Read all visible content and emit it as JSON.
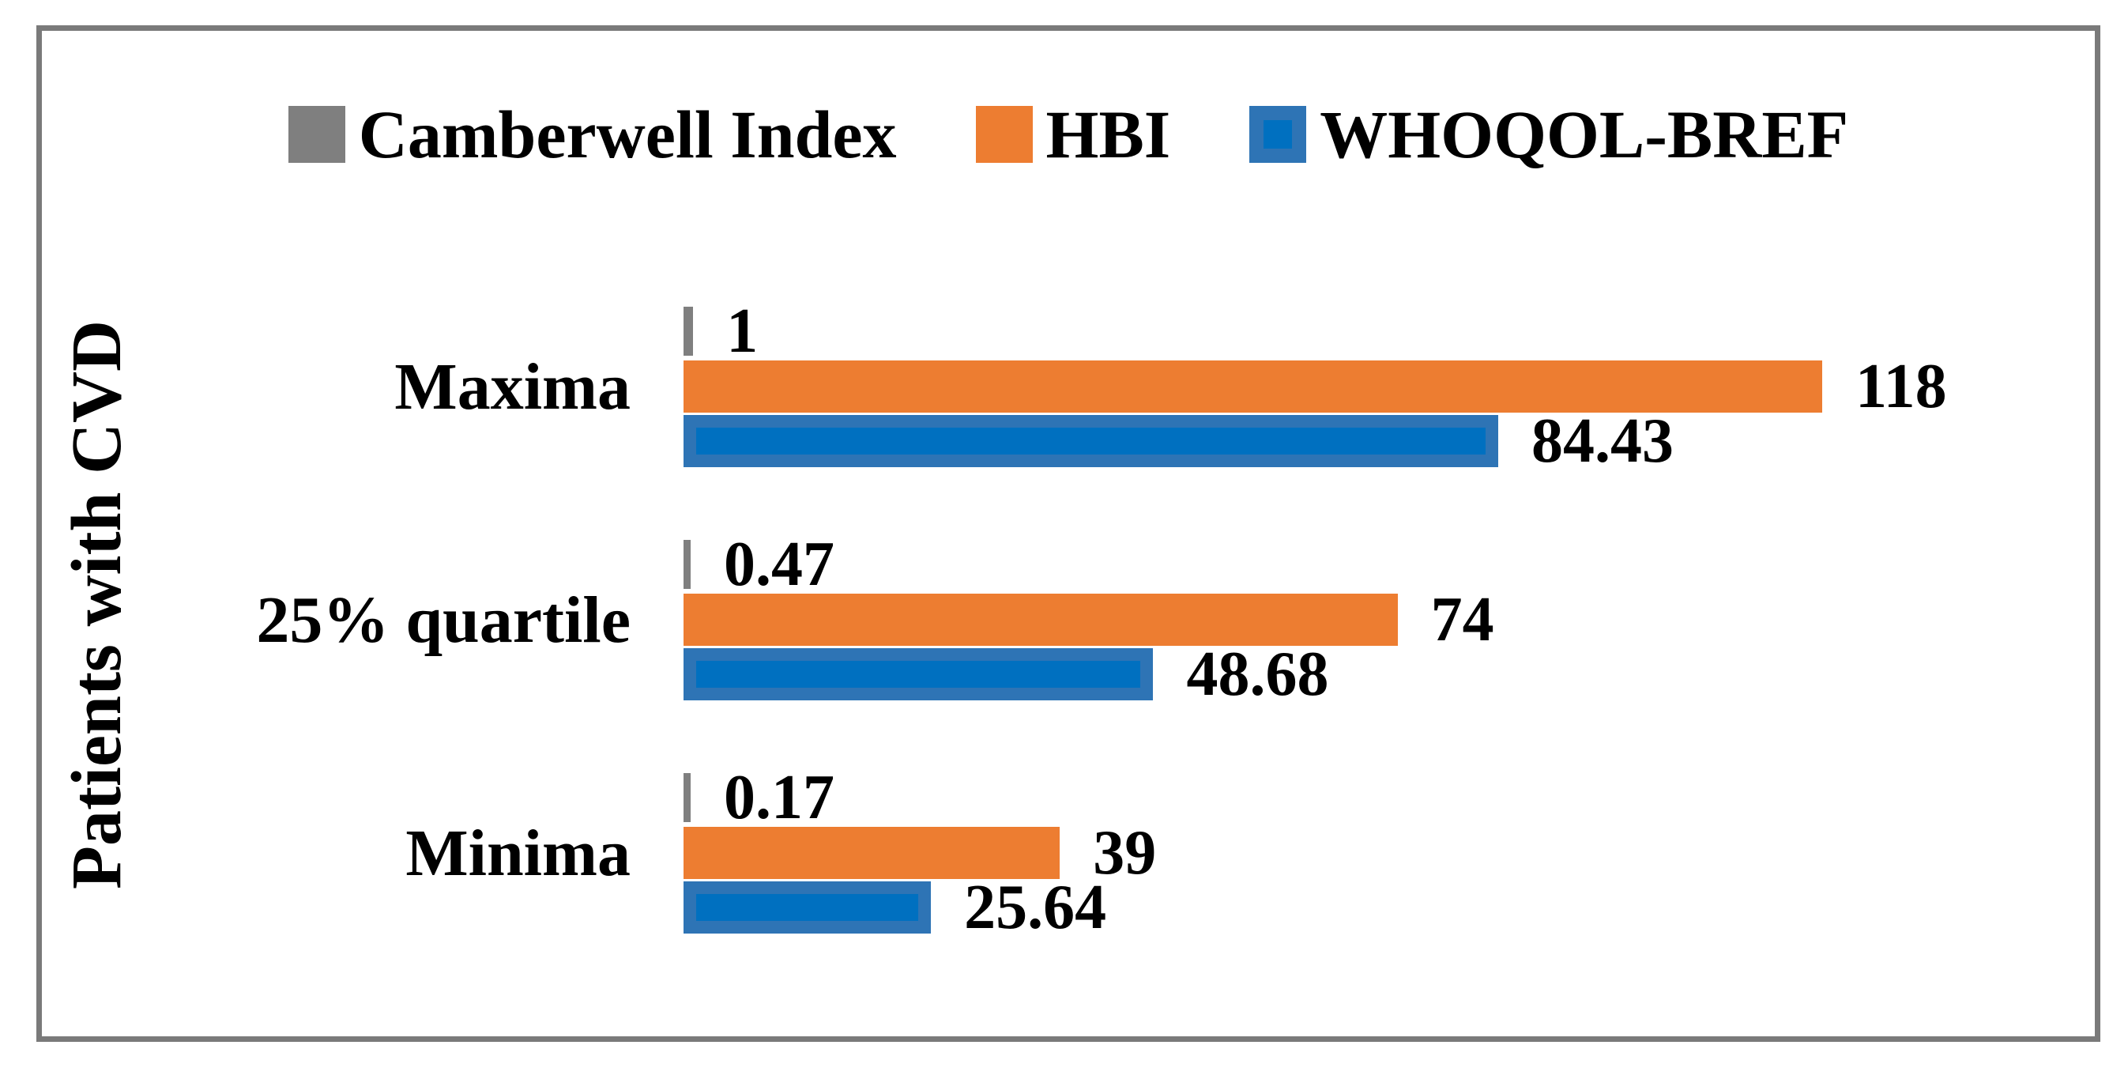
{
  "figure": {
    "background": "#ffffff",
    "frame_border_color": "#7a7a7a"
  },
  "chart_data": {
    "type": "bar",
    "orientation": "horizontal",
    "title": "",
    "xlabel": "",
    "ylabel": "Patients with CVD",
    "legend_position": "top",
    "grid": false,
    "xlim": [
      0,
      140
    ],
    "categories": [
      "Maxima",
      "25% quartile",
      "Minima"
    ],
    "series": [
      {
        "name": "Camberwell Index",
        "color": "#7F7F7F",
        "color_inner": null,
        "values": [
          1,
          0.47,
          0.17
        ],
        "value_labels": [
          "1",
          "0.47",
          "0.17"
        ]
      },
      {
        "name": "HBI",
        "color": "#ED7D31",
        "color_inner": null,
        "values": [
          118,
          74,
          39
        ],
        "value_labels": [
          "118",
          "74",
          "39"
        ]
      },
      {
        "name": "WHOQOL-BREF",
        "color": "#2E74B5",
        "color_inner": "#0070C0",
        "values": [
          84.43,
          48.68,
          25.64
        ],
        "value_labels": [
          "84.43",
          "48.68",
          "25.64"
        ]
      }
    ]
  }
}
